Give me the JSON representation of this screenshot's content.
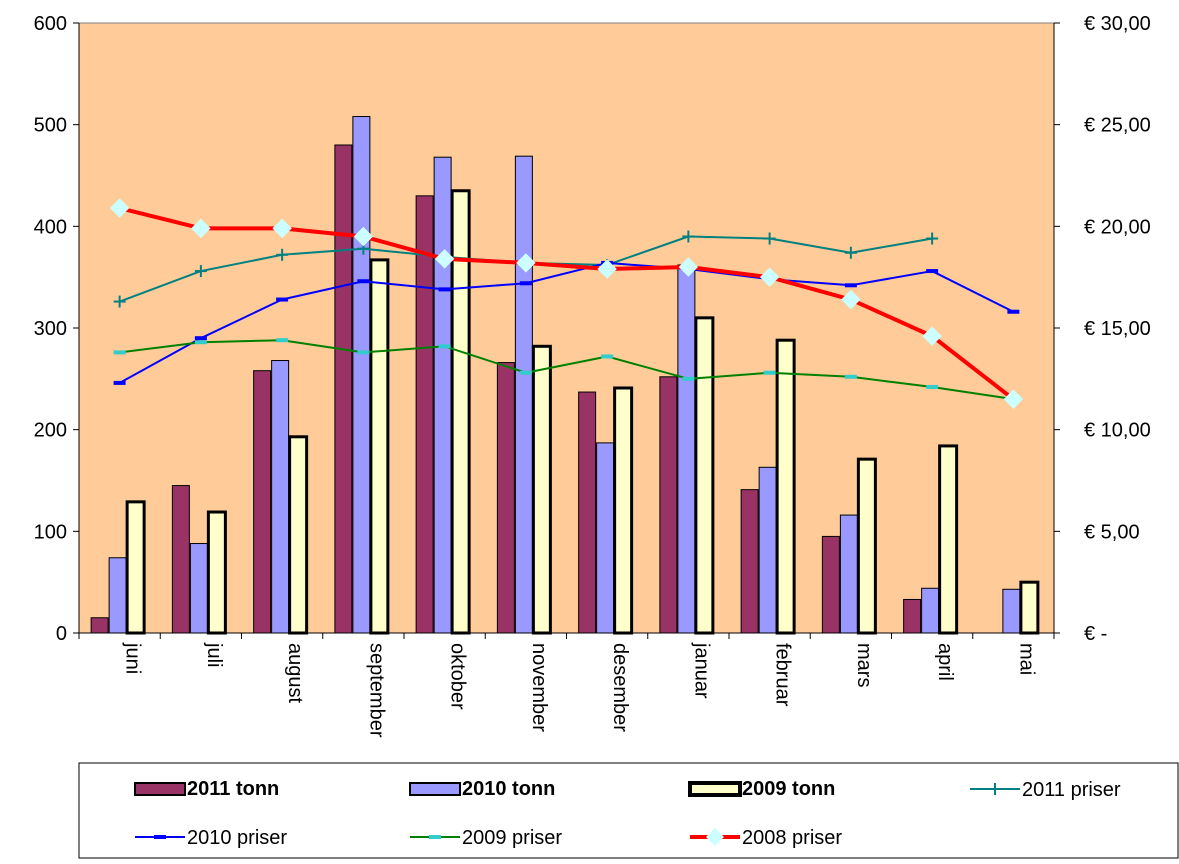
{
  "chart_data": {
    "type": "bar",
    "categories": [
      "juni",
      "juli",
      "august",
      "september",
      "oktober",
      "november",
      "desember",
      "januar",
      "februar",
      "mars",
      "april",
      "mai"
    ],
    "y_left": {
      "min": 0,
      "max": 600,
      "ticks": [
        0,
        100,
        200,
        300,
        400,
        500,
        600
      ],
      "tick_labels": [
        "0",
        "100",
        "200",
        "300",
        "400",
        "500",
        "600"
      ]
    },
    "y_right": {
      "min": 0,
      "max": 30,
      "ticks": [
        0,
        5,
        10,
        15,
        20,
        25,
        30
      ],
      "tick_labels": [
        "€ -",
        "€ 5,00",
        "€ 10,00",
        "€ 15,00",
        "€ 20,00",
        "€ 25,00",
        "€ 30,00"
      ]
    },
    "grid": false,
    "plot_background": "#FFCC99",
    "legend_position": "bottom",
    "bar_series": [
      {
        "name": "2011 tonn",
        "color": "#993366",
        "values": [
          15,
          145,
          258,
          480,
          430,
          266,
          237,
          252,
          141,
          95,
          33,
          null
        ]
      },
      {
        "name": "2010 tonn",
        "color": "#9999FF",
        "values": [
          74,
          88,
          268,
          508,
          468,
          469,
          187,
          362,
          163,
          116,
          44,
          43
        ]
      },
      {
        "name": "2009 tonn",
        "color": "#FFFFCC",
        "values": [
          129,
          119,
          193,
          367,
          435,
          282,
          241,
          310,
          288,
          171,
          184,
          50
        ]
      }
    ],
    "line_series": [
      {
        "name": "2011 priser",
        "color": "#008080",
        "marker": "plus",
        "values": [
          16.3,
          17.8,
          18.6,
          18.9,
          18.5,
          18.2,
          18.1,
          19.5,
          19.4,
          18.7,
          19.4,
          null
        ]
      },
      {
        "name": "2010 priser",
        "color": "#0000FF",
        "marker": "dash",
        "values": [
          12.3,
          14.5,
          16.4,
          17.3,
          16.9,
          17.2,
          18.2,
          17.9,
          17.4,
          17.1,
          17.8,
          15.8
        ]
      },
      {
        "name": "2009 priser",
        "color": "#008000",
        "marker": "dash",
        "values": [
          13.8,
          14.3,
          14.4,
          13.8,
          14.1,
          12.8,
          13.6,
          12.5,
          12.8,
          12.6,
          12.1,
          11.5
        ]
      },
      {
        "name": "2008 priser",
        "color": "#FF0000",
        "marker": "diamond",
        "values": [
          20.9,
          19.9,
          19.9,
          19.5,
          18.4,
          18.2,
          17.9,
          18.0,
          17.5,
          16.4,
          14.6,
          11.5
        ]
      }
    ]
  }
}
